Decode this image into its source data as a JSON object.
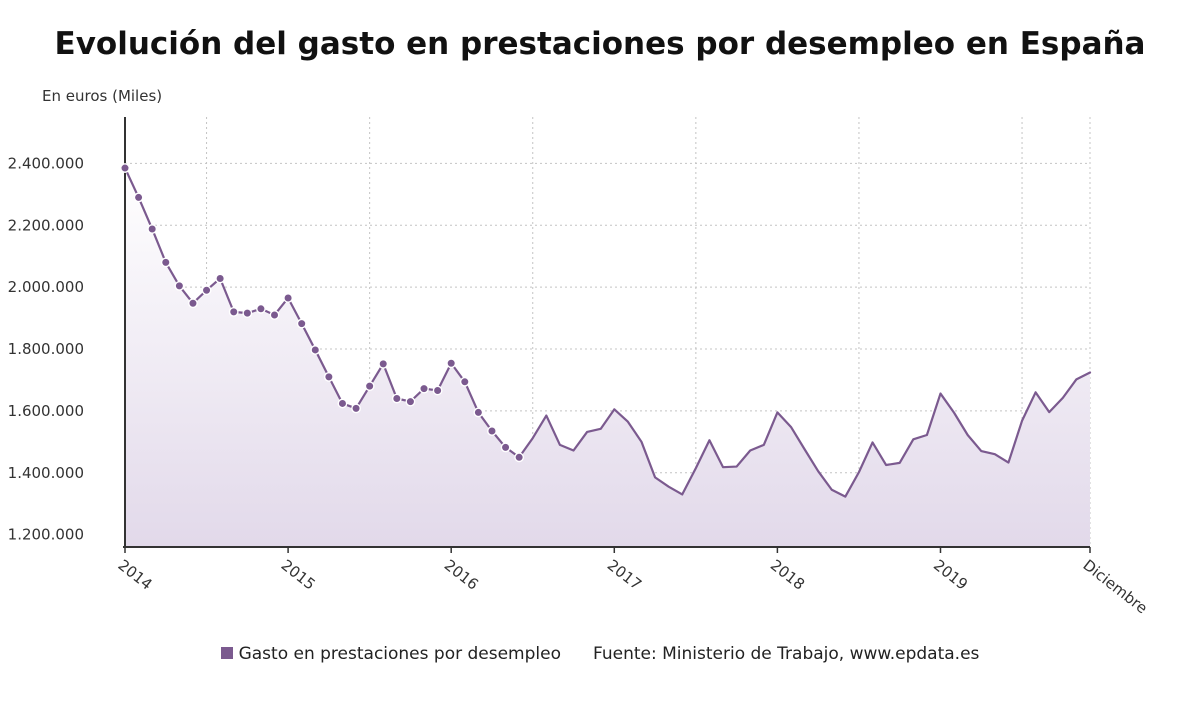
{
  "chart_data": {
    "type": "area",
    "title": "Evolución del gasto en prestaciones por desempleo en España",
    "ylabel": "En euros (Miles)",
    "xlabel": "",
    "ylim": [
      1160000,
      2550000
    ],
    "y_ticks": [
      1200000,
      1400000,
      1600000,
      1800000,
      2000000,
      2200000,
      2400000
    ],
    "y_tick_labels": [
      "1.200.000",
      "1.400.000",
      "1.600.000",
      "1.800.000",
      "2.000.000",
      "2.200.000",
      "2.400.000"
    ],
    "x_tick_labels": [
      "2014",
      "2015",
      "2016",
      "2017",
      "2018",
      "2019",
      "Diciembre"
    ],
    "grid": true,
    "legend_position": "bottom",
    "series": [
      {
        "name": "Gasto en prestaciones por desempleo",
        "color": "#7b5a8f",
        "start": "2014-01",
        "end": "2019-12",
        "values": [
          2385000,
          2290000,
          2188000,
          2080000,
          2004000,
          1948000,
          1990000,
          2028000,
          1920000,
          1916000,
          1930000,
          1910000,
          1965000,
          1882000,
          1797000,
          1710000,
          1624000,
          1608000,
          1680000,
          1752000,
          1640000,
          1630000,
          1672000,
          1666000,
          1754000,
          1694000,
          1595000,
          1535000,
          1482000,
          1450000,
          1512000,
          1585000,
          1490000,
          1472000,
          1532000,
          1542000,
          1605000,
          1565000,
          1500000,
          1385000,
          1355000,
          1330000,
          1415000,
          1505000,
          1418000,
          1420000,
          1472000,
          1490000,
          1595000,
          1548000,
          1476000,
          1405000,
          1345000,
          1323000,
          1402000,
          1498000,
          1425000,
          1432000,
          1508000,
          1522000,
          1656000,
          1594000,
          1522000,
          1470000,
          1460000,
          1433000,
          1568000,
          1660000,
          1596000,
          1642000,
          1702000,
          1724000
        ],
        "markers_through": "2016-06"
      }
    ]
  },
  "legend": {
    "series_label": "Gasto en prestaciones por desempleo",
    "source": "Fuente: Ministerio de Trabajo, www.epdata.es"
  }
}
